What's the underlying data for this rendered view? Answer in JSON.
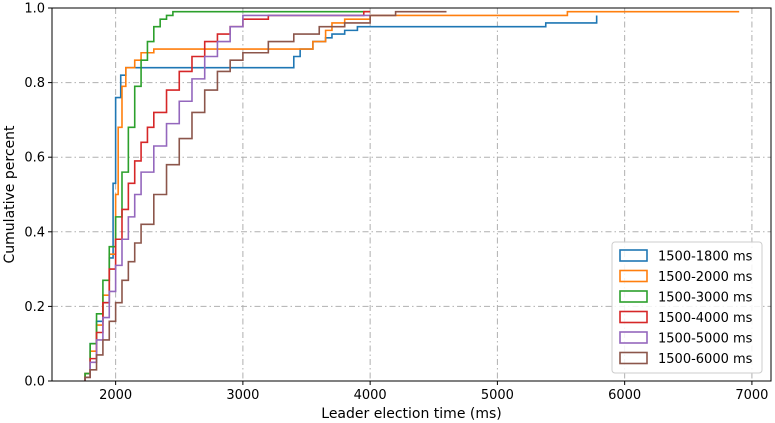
{
  "chart_data": {
    "type": "line",
    "subtype": "step-cdf",
    "title": "",
    "xlabel": "Leader election time (ms)",
    "ylabel": "Cumulative percent",
    "xlim": [
      1500,
      7150
    ],
    "ylim": [
      0,
      1.0
    ],
    "xticks": [
      2000,
      3000,
      4000,
      5000,
      6000,
      7000
    ],
    "yticks": [
      0.0,
      0.2,
      0.4,
      0.6,
      0.8,
      1.0
    ],
    "xtick_labels": [
      "2000",
      "3000",
      "4000",
      "5000",
      "6000",
      "7000"
    ],
    "ytick_labels": [
      "0.0",
      "0.2",
      "0.4",
      "0.6",
      "0.8",
      "1.0"
    ],
    "grid": true,
    "grid_style": "dash-dot",
    "legend_position": "lower-right",
    "series": [
      {
        "name": "1500-1800 ms",
        "color": "#1f77b4",
        "x": [
          1760,
          1800,
          1850,
          1900,
          1950,
          1980,
          2000,
          2040,
          2080,
          2120,
          2200,
          2400,
          3000,
          3400,
          3450,
          3550,
          3650,
          3700,
          3800,
          3900,
          4000,
          5380,
          5780,
          5780
        ],
        "y": [
          0.02,
          0.1,
          0.16,
          0.21,
          0.33,
          0.53,
          0.76,
          0.82,
          0.84,
          0.84,
          0.84,
          0.84,
          0.84,
          0.87,
          0.89,
          0.91,
          0.92,
          0.93,
          0.94,
          0.95,
          0.95,
          0.96,
          0.98,
          0.98
        ]
      },
      {
        "name": "1500-2000 ms",
        "color": "#ff7f0e",
        "x": [
          1760,
          1800,
          1850,
          1900,
          1950,
          2000,
          2020,
          2050,
          2080,
          2150,
          2200,
          2300,
          2400,
          3000,
          3500,
          3550,
          3650,
          3700,
          3800,
          4000,
          5500,
          5550,
          6900
        ],
        "y": [
          0.02,
          0.08,
          0.15,
          0.23,
          0.34,
          0.5,
          0.68,
          0.79,
          0.84,
          0.86,
          0.88,
          0.89,
          0.89,
          0.89,
          0.89,
          0.91,
          0.94,
          0.96,
          0.97,
          0.98,
          0.98,
          0.99,
          0.99
        ]
      },
      {
        "name": "1500-3000 ms",
        "color": "#2ca02c",
        "x": [
          1760,
          1800,
          1850,
          1900,
          1950,
          2000,
          2050,
          2100,
          2150,
          2200,
          2250,
          2300,
          2350,
          2400,
          2450,
          2500,
          3000,
          3500,
          4000
        ],
        "y": [
          0.02,
          0.1,
          0.18,
          0.27,
          0.36,
          0.44,
          0.56,
          0.68,
          0.79,
          0.86,
          0.91,
          0.95,
          0.97,
          0.98,
          0.99,
          0.99,
          0.99,
          0.99,
          0.99
        ]
      },
      {
        "name": "1500-4000 ms",
        "color": "#d62728",
        "x": [
          1760,
          1800,
          1850,
          1900,
          1950,
          2000,
          2050,
          2100,
          2150,
          2200,
          2250,
          2300,
          2400,
          2500,
          2600,
          2700,
          2800,
          2900,
          3000,
          3200,
          3500,
          3800,
          3950,
          4000
        ],
        "y": [
          0.01,
          0.06,
          0.13,
          0.21,
          0.3,
          0.38,
          0.46,
          0.53,
          0.59,
          0.64,
          0.68,
          0.72,
          0.78,
          0.83,
          0.87,
          0.91,
          0.93,
          0.95,
          0.97,
          0.98,
          0.98,
          0.98,
          0.99,
          0.99
        ]
      },
      {
        "name": "1500-5000 ms",
        "color": "#9467bd",
        "x": [
          1760,
          1800,
          1850,
          1900,
          1950,
          2000,
          2050,
          2100,
          2150,
          2200,
          2300,
          2400,
          2500,
          2600,
          2700,
          2800,
          2900,
          3000,
          3500,
          4000
        ],
        "y": [
          0.01,
          0.05,
          0.11,
          0.17,
          0.24,
          0.31,
          0.38,
          0.44,
          0.5,
          0.56,
          0.63,
          0.69,
          0.75,
          0.81,
          0.87,
          0.91,
          0.95,
          0.98,
          0.98,
          0.98
        ]
      },
      {
        "name": "1500-6000 ms",
        "color": "#8c564b",
        "x": [
          1760,
          1800,
          1850,
          1900,
          1950,
          2000,
          2050,
          2100,
          2150,
          2200,
          2300,
          2400,
          2500,
          2600,
          2700,
          2800,
          2900,
          3000,
          3200,
          3400,
          3600,
          3800,
          4000,
          4200,
          4600
        ],
        "y": [
          0.01,
          0.03,
          0.07,
          0.11,
          0.16,
          0.21,
          0.27,
          0.32,
          0.37,
          0.42,
          0.5,
          0.58,
          0.65,
          0.72,
          0.78,
          0.83,
          0.86,
          0.88,
          0.91,
          0.93,
          0.95,
          0.96,
          0.98,
          0.99,
          0.99
        ]
      }
    ]
  }
}
